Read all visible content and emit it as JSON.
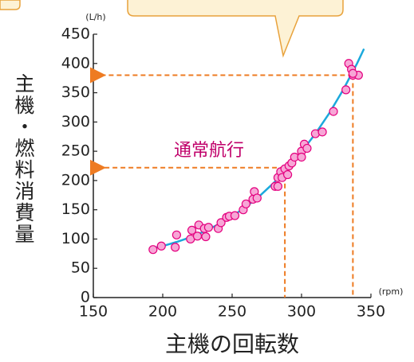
{
  "chart_data": {
    "type": "scatter",
    "y_label": "主機・燃料消費量",
    "x_label": "主機の回転数",
    "y_unit": "(L/h)",
    "x_unit": "(rpm)",
    "annotation": "通常航行",
    "xlim": [
      150,
      350
    ],
    "xticks": [
      150,
      200,
      250,
      300,
      350
    ],
    "ylim": [
      0,
      450
    ],
    "yticks": [
      0,
      50,
      100,
      150,
      200,
      250,
      300,
      350,
      400,
      450
    ],
    "color": "#f7a6d6",
    "edge_color": "#e4007f",
    "x": [
      193,
      199,
      209,
      210,
      220,
      221,
      225,
      226,
      231,
      230,
      233,
      240,
      242,
      246,
      248,
      252,
      258,
      260,
      266,
      265,
      268,
      281,
      283,
      283,
      285,
      288,
      286,
      290,
      291,
      293,
      295,
      300,
      300,
      302,
      304,
      310,
      315,
      323,
      332,
      334,
      336,
      337,
      341,
      337
    ],
    "y": [
      82,
      88,
      86,
      107,
      100,
      115,
      105,
      124,
      104,
      118,
      120,
      118,
      128,
      137,
      139,
      140,
      150,
      160,
      181,
      168,
      170,
      190,
      190,
      205,
      215,
      220,
      205,
      210,
      225,
      230,
      240,
      250,
      240,
      262,
      255,
      280,
      283,
      318,
      355,
      400,
      390,
      380,
      380,
      383
    ],
    "trend": {
      "color": "#1ba9dc",
      "x": [
        190,
        200,
        210,
        220,
        230,
        240,
        250,
        260,
        270,
        280,
        290,
        300,
        310,
        320,
        330,
        340,
        345
      ],
      "y": [
        83,
        88,
        95,
        103,
        113,
        125,
        139,
        155,
        174,
        196,
        221,
        249,
        280,
        315,
        355,
        400,
        425
      ]
    },
    "reference_lines": [
      {
        "x": 337,
        "y": 380
      },
      {
        "x": 288,
        "y": 222
      }
    ],
    "reference_color": "#ee7b22"
  }
}
